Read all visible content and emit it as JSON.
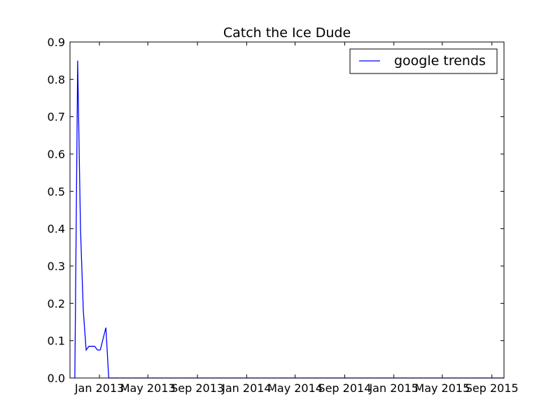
{
  "chart_data": {
    "type": "line",
    "title": "Catch the Ice Dude",
    "xlabel": "",
    "ylabel": "",
    "ylim": [
      0,
      0.9
    ],
    "xlim": [
      "2012-10-20",
      "2015-10-01"
    ],
    "y_ticks": [
      "0.0",
      "0.1",
      "0.2",
      "0.3",
      "0.4",
      "0.5",
      "0.6",
      "0.7",
      "0.8",
      "0.9"
    ],
    "x_ticks": [
      {
        "date": "2013-01-01",
        "label": "Jan 2013"
      },
      {
        "date": "2013-05-01",
        "label": "May 2013"
      },
      {
        "date": "2013-09-01",
        "label": "Sep 2013"
      },
      {
        "date": "2014-01-01",
        "label": "Jan 2014"
      },
      {
        "date": "2014-05-01",
        "label": "May 2014"
      },
      {
        "date": "2014-09-01",
        "label": "Sep 2014"
      },
      {
        "date": "2015-01-01",
        "label": "Jan 2015"
      },
      {
        "date": "2015-05-01",
        "label": "May 2015"
      },
      {
        "date": "2015-09-01",
        "label": "Sep 2015"
      }
    ],
    "grid": false,
    "legend_position": "top-right",
    "series": [
      {
        "name": "google trends",
        "color": "#0000ff",
        "points": [
          {
            "x": "2012-11-01",
            "y": 0.0
          },
          {
            "x": "2012-11-08",
            "y": 0.85
          },
          {
            "x": "2012-11-15",
            "y": 0.4
          },
          {
            "x": "2012-11-22",
            "y": 0.18
          },
          {
            "x": "2012-11-29",
            "y": 0.075
          },
          {
            "x": "2012-12-06",
            "y": 0.085
          },
          {
            "x": "2012-12-13",
            "y": 0.085
          },
          {
            "x": "2012-12-20",
            "y": 0.085
          },
          {
            "x": "2012-12-27",
            "y": 0.075
          },
          {
            "x": "2013-01-03",
            "y": 0.075
          },
          {
            "x": "2013-01-10",
            "y": 0.105
          },
          {
            "x": "2013-01-17",
            "y": 0.135
          },
          {
            "x": "2013-01-24",
            "y": 0.0
          },
          {
            "x": "2013-03-01",
            "y": 0.0
          },
          {
            "x": "2013-06-01",
            "y": 0.0
          },
          {
            "x": "2013-09-01",
            "y": 0.0
          },
          {
            "x": "2013-12-01",
            "y": 0.0
          },
          {
            "x": "2014-03-01",
            "y": 0.0
          },
          {
            "x": "2014-06-01",
            "y": 0.0
          },
          {
            "x": "2014-09-01",
            "y": 0.0
          },
          {
            "x": "2014-12-01",
            "y": 0.0
          },
          {
            "x": "2015-03-01",
            "y": 0.0
          },
          {
            "x": "2015-06-01",
            "y": 0.0
          },
          {
            "x": "2015-10-01",
            "y": 0.0
          }
        ]
      }
    ]
  }
}
